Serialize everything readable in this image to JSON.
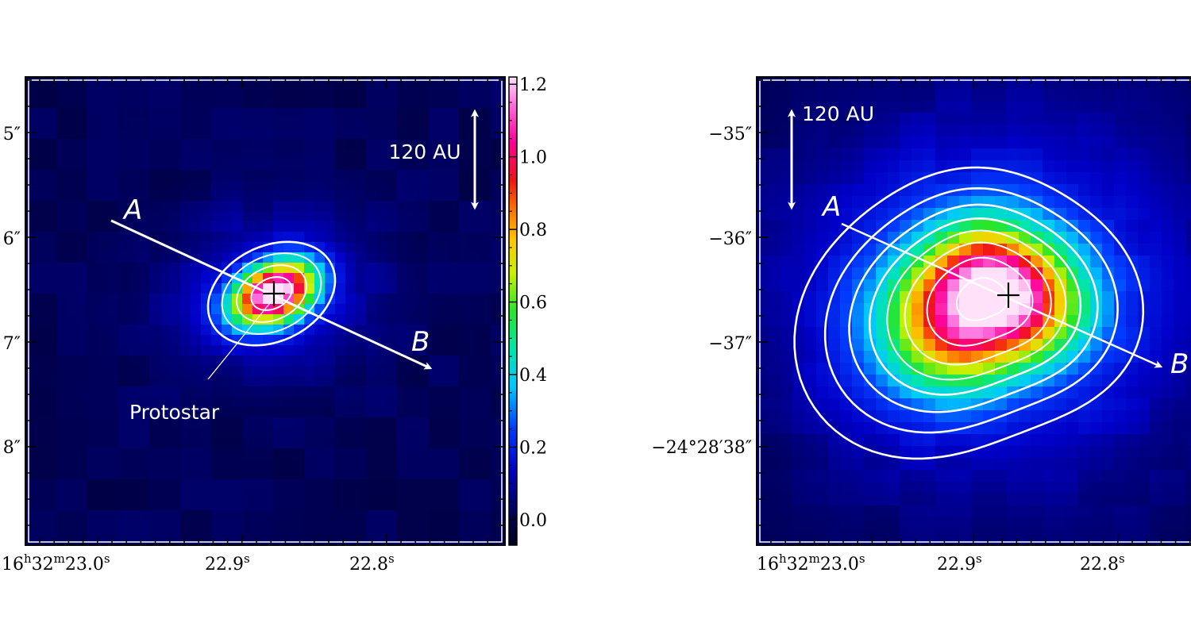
{
  "chart_data": [
    {
      "type": "heatmap",
      "panel": "left",
      "x_tick_labels": [
        {
          "h": "16",
          "m": "32",
          "s": "23.0"
        },
        {
          "s": "22.9"
        },
        {
          "s": "22.8"
        }
      ],
      "y_tick_labels": [
        "5″",
        "6″",
        "7″",
        "8″"
      ],
      "colorbar": {
        "range": [
          -0.07,
          1.22
        ],
        "tick_values": [
          0.0,
          0.2,
          0.4,
          0.6,
          0.8,
          1.0,
          1.2
        ],
        "tick_labels": [
          "0.0",
          "0.2",
          "0.4",
          "0.6",
          "0.8",
          "1.0",
          "1.2"
        ]
      },
      "annotations": {
        "scale_label": "120 AU",
        "axis_start_label": "A",
        "axis_end_label": "B",
        "source_label": "Protostar",
        "source_marker": "cross"
      },
      "source": {
        "peak": 1.15,
        "shape": "compact elliptical",
        "contour_count": 4
      }
    },
    {
      "type": "heatmap",
      "panel": "right",
      "x_tick_labels": [
        {
          "h": "16",
          "m": "32",
          "s": "23.0"
        },
        {
          "s": "22.9"
        },
        {
          "s": "22.8"
        }
      ],
      "y_tick_labels": [
        "−35″",
        "−36″",
        "−37″",
        "−24°28′38″"
      ],
      "annotations": {
        "scale_label": "120 AU",
        "axis_start_label": "A",
        "axis_end_label": "B",
        "source_marker": "cross"
      },
      "source": {
        "peak": 1.15,
        "shape": "extended asymmetric",
        "contour_count": 8
      }
    }
  ]
}
